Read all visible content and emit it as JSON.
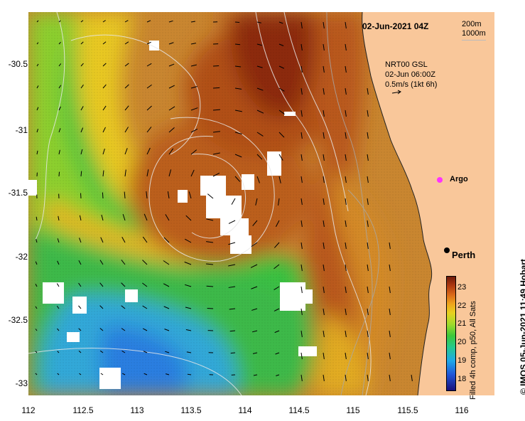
{
  "map": {
    "title": "02-Jun-2021 04Z",
    "depth_legend": [
      "200m",
      "1000m"
    ],
    "current_info": [
      "NRT00 GSL",
      "02-Jun 06:00Z",
      "0.5m/s (1kt 6h)"
    ],
    "argo_label": "Argo",
    "city_label": "Perth",
    "credit": "© IMOS 05-Jun-2021 11:49 Hobart",
    "colorbar_caption": "Filled 4h comp, p50, All Sats",
    "colorbar_ticks": [
      "23",
      "22",
      "21",
      "20",
      "19",
      "18"
    ],
    "lon_ticks": [
      "112",
      "112.5",
      "113",
      "113.5",
      "114",
      "114.5",
      "115",
      "115.5",
      "116"
    ],
    "lat_ticks": [
      "-30.5",
      "-31",
      "-31.5",
      "-32",
      "-32.5",
      "-33"
    ],
    "colors": {
      "land": "#f9c79a",
      "warm": "#b5501a",
      "cool": "#2aa0e0",
      "argo": "#ff33ff"
    }
  }
}
